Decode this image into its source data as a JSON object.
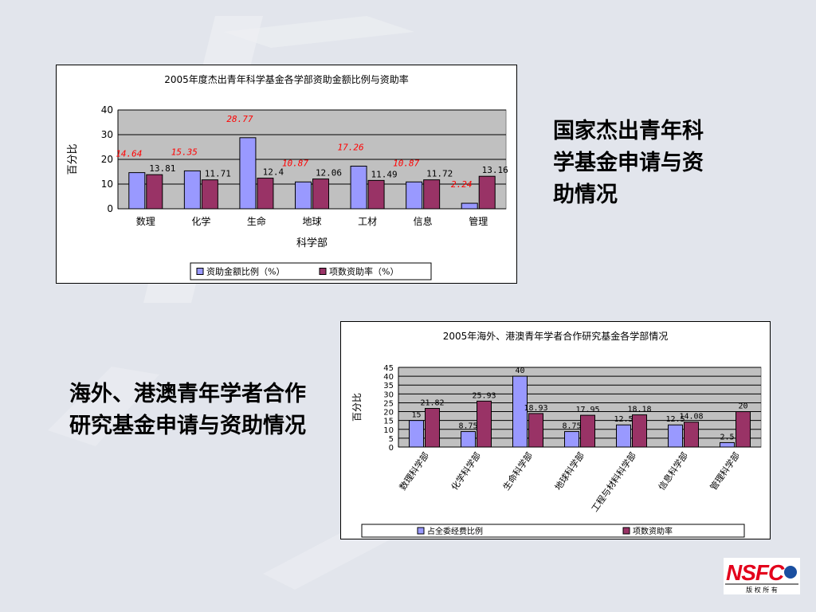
{
  "slide": {
    "title_right": "国家杰出青年科学基金申请与资助情况",
    "title_left": "海外、港澳青年学者合作研究基金申请与资助情况",
    "logo": {
      "text": "NSFC",
      "subtitle": "版 权 所 有",
      "color": "#e3001b"
    }
  },
  "chart_data": [
    {
      "type": "bar",
      "title": "2005年度杰出青年科学基金各学部资助金额比例与资助率",
      "xlabel": "科学部",
      "ylabel": "百分比",
      "ylim": [
        0,
        40
      ],
      "yticks": [
        0,
        10,
        20,
        30,
        40
      ],
      "categories": [
        "数理",
        "化学",
        "生命",
        "地球",
        "工材",
        "信息",
        "管理"
      ],
      "series": [
        {
          "name": "资助金额比例（%）",
          "color": "#9999ff",
          "values": [
            14.64,
            15.35,
            28.77,
            10.87,
            17.26,
            10.87,
            2.24
          ],
          "labels": [
            "14.64",
            "15.35",
            "28.77",
            "10.87",
            "17.26",
            "10.87",
            "2.24"
          ],
          "label_color": "#ff0000"
        },
        {
          "name": "项数资助率（%）",
          "color": "#993366",
          "values": [
            13.81,
            11.71,
            12.4,
            12.06,
            11.49,
            11.72,
            13.16
          ],
          "labels": [
            "13.81",
            "11.71",
            "12.4",
            "12.06",
            "11.49",
            "11.72",
            "13.16"
          ],
          "label_color": "#000000"
        }
      ],
      "legend": "bottom",
      "grid": true,
      "plot_bg": "#c0c0c0"
    },
    {
      "type": "bar",
      "title": "2005年海外、港澳青年学者合作研究基金各学部情况",
      "ylabel": "百分比",
      "ylim": [
        0,
        45
      ],
      "yticks": [
        0,
        5,
        10,
        15,
        20,
        25,
        30,
        35,
        40,
        45
      ],
      "categories": [
        "数理科学部",
        "化学科学部",
        "生命科学部",
        "地球科学部",
        "工程与材料科学部",
        "信息科学部",
        "管理科学部"
      ],
      "series": [
        {
          "name": "占全委经费比例",
          "color": "#9999ff",
          "values": [
            15,
            8.75,
            40,
            8.75,
            12.5,
            12.5,
            2.5
          ],
          "labels": [
            "15",
            "8.75",
            "40",
            "8.75",
            "12.5",
            "12.5",
            "2.5"
          ],
          "label_color": "#000000"
        },
        {
          "name": "项数资助率",
          "color": "#993366",
          "values": [
            21.82,
            25.93,
            18.93,
            17.95,
            18.18,
            14.08,
            20
          ],
          "labels": [
            "21.82",
            "25.93",
            "18.93",
            "17.95",
            "18.18",
            "14.08",
            "20"
          ],
          "label_color": "#000000"
        }
      ],
      "legend": "bottom",
      "grid": true,
      "plot_bg": "#c0c0c0"
    }
  ]
}
